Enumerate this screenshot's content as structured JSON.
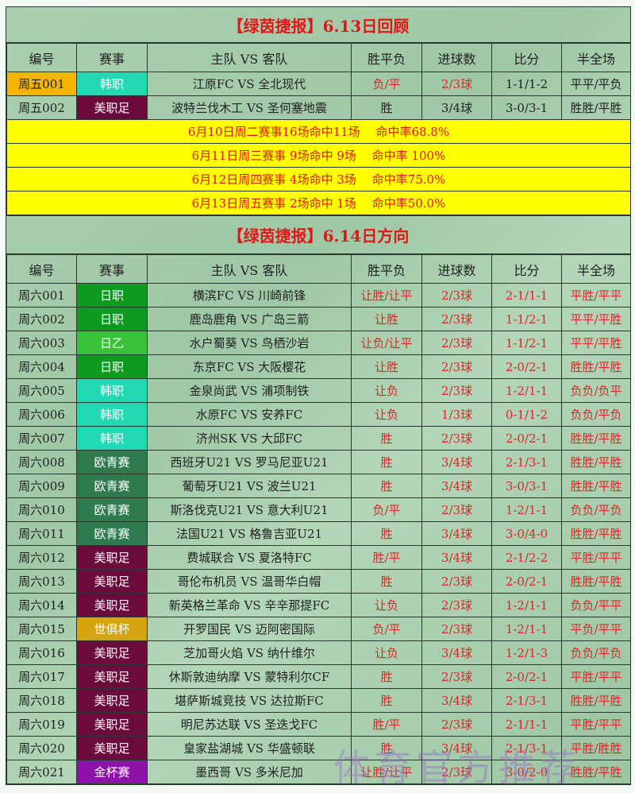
{
  "columns": [
    "编号",
    "赛事",
    "主队 VS 客队",
    "胜平负",
    "进球数",
    "比分",
    "半全场"
  ],
  "comp_colors": {
    "韩职": "#22d9b4",
    "美职足": "#6b0b3c",
    "日职": "#0e9a1e",
    "日乙": "#38c23a",
    "欧青赛": "#2f7a4f",
    "世俱杯": "#d6a312",
    "金杯赛": "#8c12aa"
  },
  "id_highlight_color": "#f5b400",
  "review": {
    "title": "【绿茵捷报】6.13日回顾",
    "rows": [
      {
        "id": "周五001",
        "comp": "韩职",
        "match": "江原FC VS 全北现代",
        "wdl": "负/平",
        "goals": "2/3球",
        "score": "1-1/1-2",
        "htft": "平平/平负",
        "hit": true
      },
      {
        "id": "周五002",
        "comp": "美职足",
        "match": "波特兰伐木工 VS 圣何塞地震",
        "wdl": "胜",
        "goals": "3/4球",
        "score": "3-0/3-1",
        "htft": "胜胜/平胜",
        "hit": false
      }
    ],
    "summary": [
      "6月10日周二赛事16场命中11场　 命中率68.8%",
      "6月11日周三赛事 9场命中 9场　 命中率 100%",
      "6月12日周四赛事 4场命中 3场　 命中率75.0%",
      "6月13日周五赛事 2场命中 1场　 命中率50.0%"
    ]
  },
  "picks": {
    "title": "【绿茵捷报】6.14日方向",
    "rows": [
      {
        "id": "周六001",
        "comp": "日职",
        "match": "横滨FC VS 川崎前锋",
        "wdl": "让胜/让平",
        "goals": "2/3球",
        "score": "2-1/1-1",
        "htft": "平胜/平平"
      },
      {
        "id": "周六002",
        "comp": "日职",
        "match": "鹿岛鹿角 VS 广岛三箭",
        "wdl": "让胜",
        "goals": "2/3球",
        "score": "1-1/2-1",
        "htft": "平平/平胜"
      },
      {
        "id": "周六003",
        "comp": "日乙",
        "match": "水户蜀葵 VS 鸟栖沙岩",
        "wdl": "让负/让平",
        "goals": "2/3球",
        "score": "1-1/2-1",
        "htft": "平平/平胜"
      },
      {
        "id": "周六004",
        "comp": "日职",
        "match": "东京FC VS 大阪樱花",
        "wdl": "让胜",
        "goals": "2/3球",
        "score": "2-0/2-1",
        "htft": "胜胜/平胜"
      },
      {
        "id": "周六005",
        "comp": "韩职",
        "match": "金泉尚武 VS 浦项制铁",
        "wdl": "让负",
        "goals": "2/3球",
        "score": "1-2/1-1",
        "htft": "负负/负平"
      },
      {
        "id": "周六006",
        "comp": "韩职",
        "match": "水原FC VS 安养FC",
        "wdl": "让负",
        "goals": "1/3球",
        "score": "0-1/1-2",
        "htft": "负负/平负"
      },
      {
        "id": "周六007",
        "comp": "韩职",
        "match": "济州SK VS 大邱FC",
        "wdl": "胜",
        "goals": "2/3球",
        "score": "2-0/2-1",
        "htft": "胜胜/平胜"
      },
      {
        "id": "周六008",
        "comp": "欧青赛",
        "match": "西班牙U21 VS 罗马尼亚U21",
        "wdl": "胜",
        "goals": "3/4球",
        "score": "2-1/3-1",
        "htft": "胜胜/平胜"
      },
      {
        "id": "周六009",
        "comp": "欧青赛",
        "match": "葡萄牙U21 VS 波兰U21",
        "wdl": "胜",
        "goals": "3/4球",
        "score": "3-0/3-1",
        "htft": "胜胜/平胜"
      },
      {
        "id": "周六010",
        "comp": "欧青赛",
        "match": "斯洛伐克U21 VS 意大利U21",
        "wdl": "负/平",
        "goals": "2/3球",
        "score": "1-2/1-1",
        "htft": "负负/平负"
      },
      {
        "id": "周六011",
        "comp": "欧青赛",
        "match": "法国U21 VS 格鲁吉亚U21",
        "wdl": "胜",
        "goals": "3/4球",
        "score": "3-0/4-0",
        "htft": "胜胜/平胜"
      },
      {
        "id": "周六012",
        "comp": "美职足",
        "match": "费城联合 VS 夏洛特FC",
        "wdl": "胜/平",
        "goals": "3/4球",
        "score": "2-1/2-2",
        "htft": "平胜/平平"
      },
      {
        "id": "周六013",
        "comp": "美职足",
        "match": "哥伦布机员 VS 温哥华白帽",
        "wdl": "胜",
        "goals": "2/3球",
        "score": "2-0/2-1",
        "htft": "胜胜/平胜"
      },
      {
        "id": "周六014",
        "comp": "美职足",
        "match": "新英格兰革命 VS 辛辛那提FC",
        "wdl": "让负",
        "goals": "2/3球",
        "score": "1-2/1-1",
        "htft": "负负/平平"
      },
      {
        "id": "周六015",
        "comp": "世俱杯",
        "match": "开罗国民 VS 迈阿密国际",
        "wdl": "负/平",
        "goals": "2/3球",
        "score": "1-2/1-1",
        "htft": "平负/平平"
      },
      {
        "id": "周六016",
        "comp": "美职足",
        "match": "芝加哥火焰 VS 纳什维尔",
        "wdl": "让负",
        "goals": "3/4球",
        "score": "1-2/1-3",
        "htft": "负负/平负"
      },
      {
        "id": "周六017",
        "comp": "美职足",
        "match": "休斯敦迪纳摩 VS 蒙特利尔CF",
        "wdl": "胜",
        "goals": "2/3球",
        "score": "2-0/2-1",
        "htft": "平胜/平平"
      },
      {
        "id": "周六018",
        "comp": "美职足",
        "match": "堪萨斯城竞技 VS 达拉斯FC",
        "wdl": "胜",
        "goals": "3/4球",
        "score": "2-1/3-1",
        "htft": "胜胜/平胜"
      },
      {
        "id": "周六019",
        "comp": "美职足",
        "match": "明尼苏达联 VS 圣迭戈FC",
        "wdl": "胜/平",
        "goals": "2/3球",
        "score": "2-1/1-1",
        "htft": "平胜/平平"
      },
      {
        "id": "周六020",
        "comp": "美职足",
        "match": "皇家盐湖城 VS 华盛顿联",
        "wdl": "胜",
        "goals": "3/4球",
        "score": "2-1/3-1",
        "htft": "平胜/胜胜"
      },
      {
        "id": "周六021",
        "comp": "金杯赛",
        "match": "墨西哥 VS 多米尼加",
        "wdl": "让胜/让平",
        "goals": "2/3球",
        "score": "3-0/2-0",
        "htft": "胜胜/平胜"
      }
    ]
  },
  "watermark": "体育官方推荐"
}
